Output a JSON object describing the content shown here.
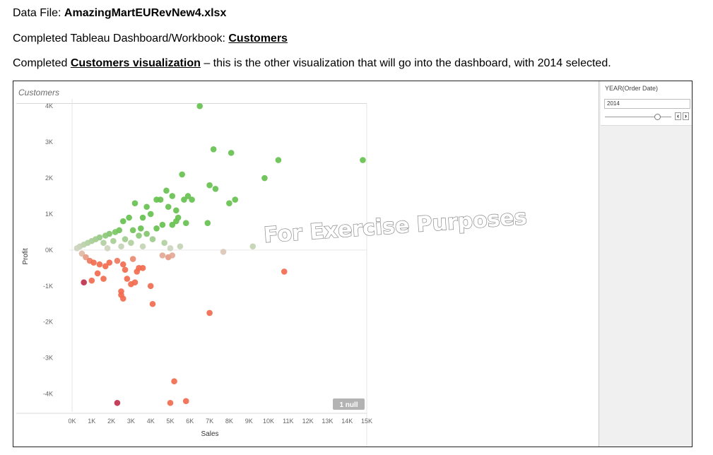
{
  "document": {
    "line1_prefix": "Data File:  ",
    "line1_file": "AmazingMartEURevNew4.xlsx",
    "line2_prefix": "Completed Tableau Dashboard/Workbook:  ",
    "line2_name": "Customers",
    "line3_prefix": "Completed ",
    "line3_name": "Customers visualization",
    "line3_suffix": " – this is the other visualization that will go into the dashboard, with 2014 selected."
  },
  "sheet": {
    "title": "Customers"
  },
  "filter": {
    "title": "YEAR(Order Date)",
    "value": "2014",
    "prev_label": "‹",
    "next_label": "›"
  },
  "watermark": "For Exercise Purposes",
  "null_badge": "1 null",
  "colors": {
    "positive": "#66c14f",
    "neutral": "#d6d6c8",
    "negative": "#f26b4e",
    "strong_negative": "#c0304d"
  },
  "chart_data": {
    "type": "scatter",
    "xlabel": "Sales",
    "ylabel": "Profit",
    "xlim": [
      0,
      15000
    ],
    "ylim": [
      -4500,
      4200
    ],
    "x_ticks": [
      0,
      1000,
      2000,
      3000,
      4000,
      5000,
      6000,
      7000,
      8000,
      9000,
      10000,
      11000,
      12000,
      13000,
      14000,
      15000
    ],
    "x_tick_labels": [
      "0K",
      "1K",
      "2K",
      "3K",
      "4K",
      "5K",
      "6K",
      "7K",
      "8K",
      "9K",
      "10K",
      "11K",
      "12K",
      "13K",
      "14K",
      "15K"
    ],
    "y_ticks": [
      4000,
      3000,
      2000,
      1000,
      0,
      -1000,
      -2000,
      -3000,
      -4000
    ],
    "y_tick_labels": [
      "4K",
      "3K",
      "2K",
      "1K",
      "0K",
      "-1K",
      "-2K",
      "-3K",
      "-4K"
    ],
    "points": [
      {
        "x": 6500,
        "y": 4000
      },
      {
        "x": 7200,
        "y": 2800
      },
      {
        "x": 8100,
        "y": 2700
      },
      {
        "x": 10500,
        "y": 2500
      },
      {
        "x": 14800,
        "y": 2500
      },
      {
        "x": 9800,
        "y": 2000
      },
      {
        "x": 5600,
        "y": 2100
      },
      {
        "x": 7000,
        "y": 1800
      },
      {
        "x": 7300,
        "y": 1700
      },
      {
        "x": 8300,
        "y": 1400
      },
      {
        "x": 8000,
        "y": 1300
      },
      {
        "x": 4800,
        "y": 1650
      },
      {
        "x": 5100,
        "y": 1500
      },
      {
        "x": 5900,
        "y": 1500
      },
      {
        "x": 6100,
        "y": 1400
      },
      {
        "x": 5700,
        "y": 1400
      },
      {
        "x": 4300,
        "y": 1400
      },
      {
        "x": 4500,
        "y": 1400
      },
      {
        "x": 3200,
        "y": 1300
      },
      {
        "x": 3800,
        "y": 1200
      },
      {
        "x": 4900,
        "y": 1200
      },
      {
        "x": 5300,
        "y": 1100
      },
      {
        "x": 4000,
        "y": 1000
      },
      {
        "x": 3600,
        "y": 900
      },
      {
        "x": 2900,
        "y": 900
      },
      {
        "x": 2600,
        "y": 800
      },
      {
        "x": 5300,
        "y": 800
      },
      {
        "x": 5400,
        "y": 900
      },
      {
        "x": 6900,
        "y": 750
      },
      {
        "x": 5800,
        "y": 750
      },
      {
        "x": 4600,
        "y": 700
      },
      {
        "x": 5100,
        "y": 700
      },
      {
        "x": 4300,
        "y": 600
      },
      {
        "x": 3500,
        "y": 600
      },
      {
        "x": 3100,
        "y": 550
      },
      {
        "x": 2400,
        "y": 550
      },
      {
        "x": 2200,
        "y": 500
      },
      {
        "x": 1900,
        "y": 450
      },
      {
        "x": 1700,
        "y": 400
      },
      {
        "x": 1400,
        "y": 350
      },
      {
        "x": 1200,
        "y": 300
      },
      {
        "x": 1000,
        "y": 250
      },
      {
        "x": 800,
        "y": 200
      },
      {
        "x": 600,
        "y": 150
      },
      {
        "x": 400,
        "y": 100
      },
      {
        "x": 250,
        "y": 50
      },
      {
        "x": 3400,
        "y": 400
      },
      {
        "x": 3800,
        "y": 450
      },
      {
        "x": 2700,
        "y": 300
      },
      {
        "x": 2100,
        "y": 250
      },
      {
        "x": 1600,
        "y": 200
      },
      {
        "x": 3000,
        "y": 200
      },
      {
        "x": 4100,
        "y": 300
      },
      {
        "x": 4700,
        "y": 200
      },
      {
        "x": 3600,
        "y": 100
      },
      {
        "x": 2500,
        "y": 100
      },
      {
        "x": 1800,
        "y": 50
      },
      {
        "x": 5500,
        "y": 100
      },
      {
        "x": 5000,
        "y": 50
      },
      {
        "x": 9200,
        "y": 100
      },
      {
        "x": 4600,
        "y": -150
      },
      {
        "x": 4900,
        "y": -200
      },
      {
        "x": 5100,
        "y": -150
      },
      {
        "x": 7700,
        "y": -50
      },
      {
        "x": 10800,
        "y": -600
      },
      {
        "x": 500,
        "y": -100
      },
      {
        "x": 700,
        "y": -200
      },
      {
        "x": 900,
        "y": -300
      },
      {
        "x": 1100,
        "y": -350
      },
      {
        "x": 1400,
        "y": -400
      },
      {
        "x": 1700,
        "y": -450
      },
      {
        "x": 1900,
        "y": -350
      },
      {
        "x": 2300,
        "y": -300
      },
      {
        "x": 2600,
        "y": -400
      },
      {
        "x": 3100,
        "y": -250
      },
      {
        "x": 3300,
        "y": -600
      },
      {
        "x": 3400,
        "y": -500
      },
      {
        "x": 3600,
        "y": -500
      },
      {
        "x": 2700,
        "y": -550
      },
      {
        "x": 1300,
        "y": -650
      },
      {
        "x": 1600,
        "y": -800
      },
      {
        "x": 1000,
        "y": -850
      },
      {
        "x": 2800,
        "y": -800
      },
      {
        "x": 3200,
        "y": -900
      },
      {
        "x": 3000,
        "y": -950
      },
      {
        "x": 4000,
        "y": -1000
      },
      {
        "x": 2500,
        "y": -1150
      },
      {
        "x": 2500,
        "y": -1250
      },
      {
        "x": 2600,
        "y": -1350
      },
      {
        "x": 4100,
        "y": -1500
      },
      {
        "x": 7000,
        "y": -1750
      },
      {
        "x": 5200,
        "y": -3650
      },
      {
        "x": 5000,
        "y": -4250
      },
      {
        "x": 5800,
        "y": -4200
      },
      {
        "x": 600,
        "y": -900
      },
      {
        "x": 2300,
        "y": -4250
      }
    ]
  }
}
